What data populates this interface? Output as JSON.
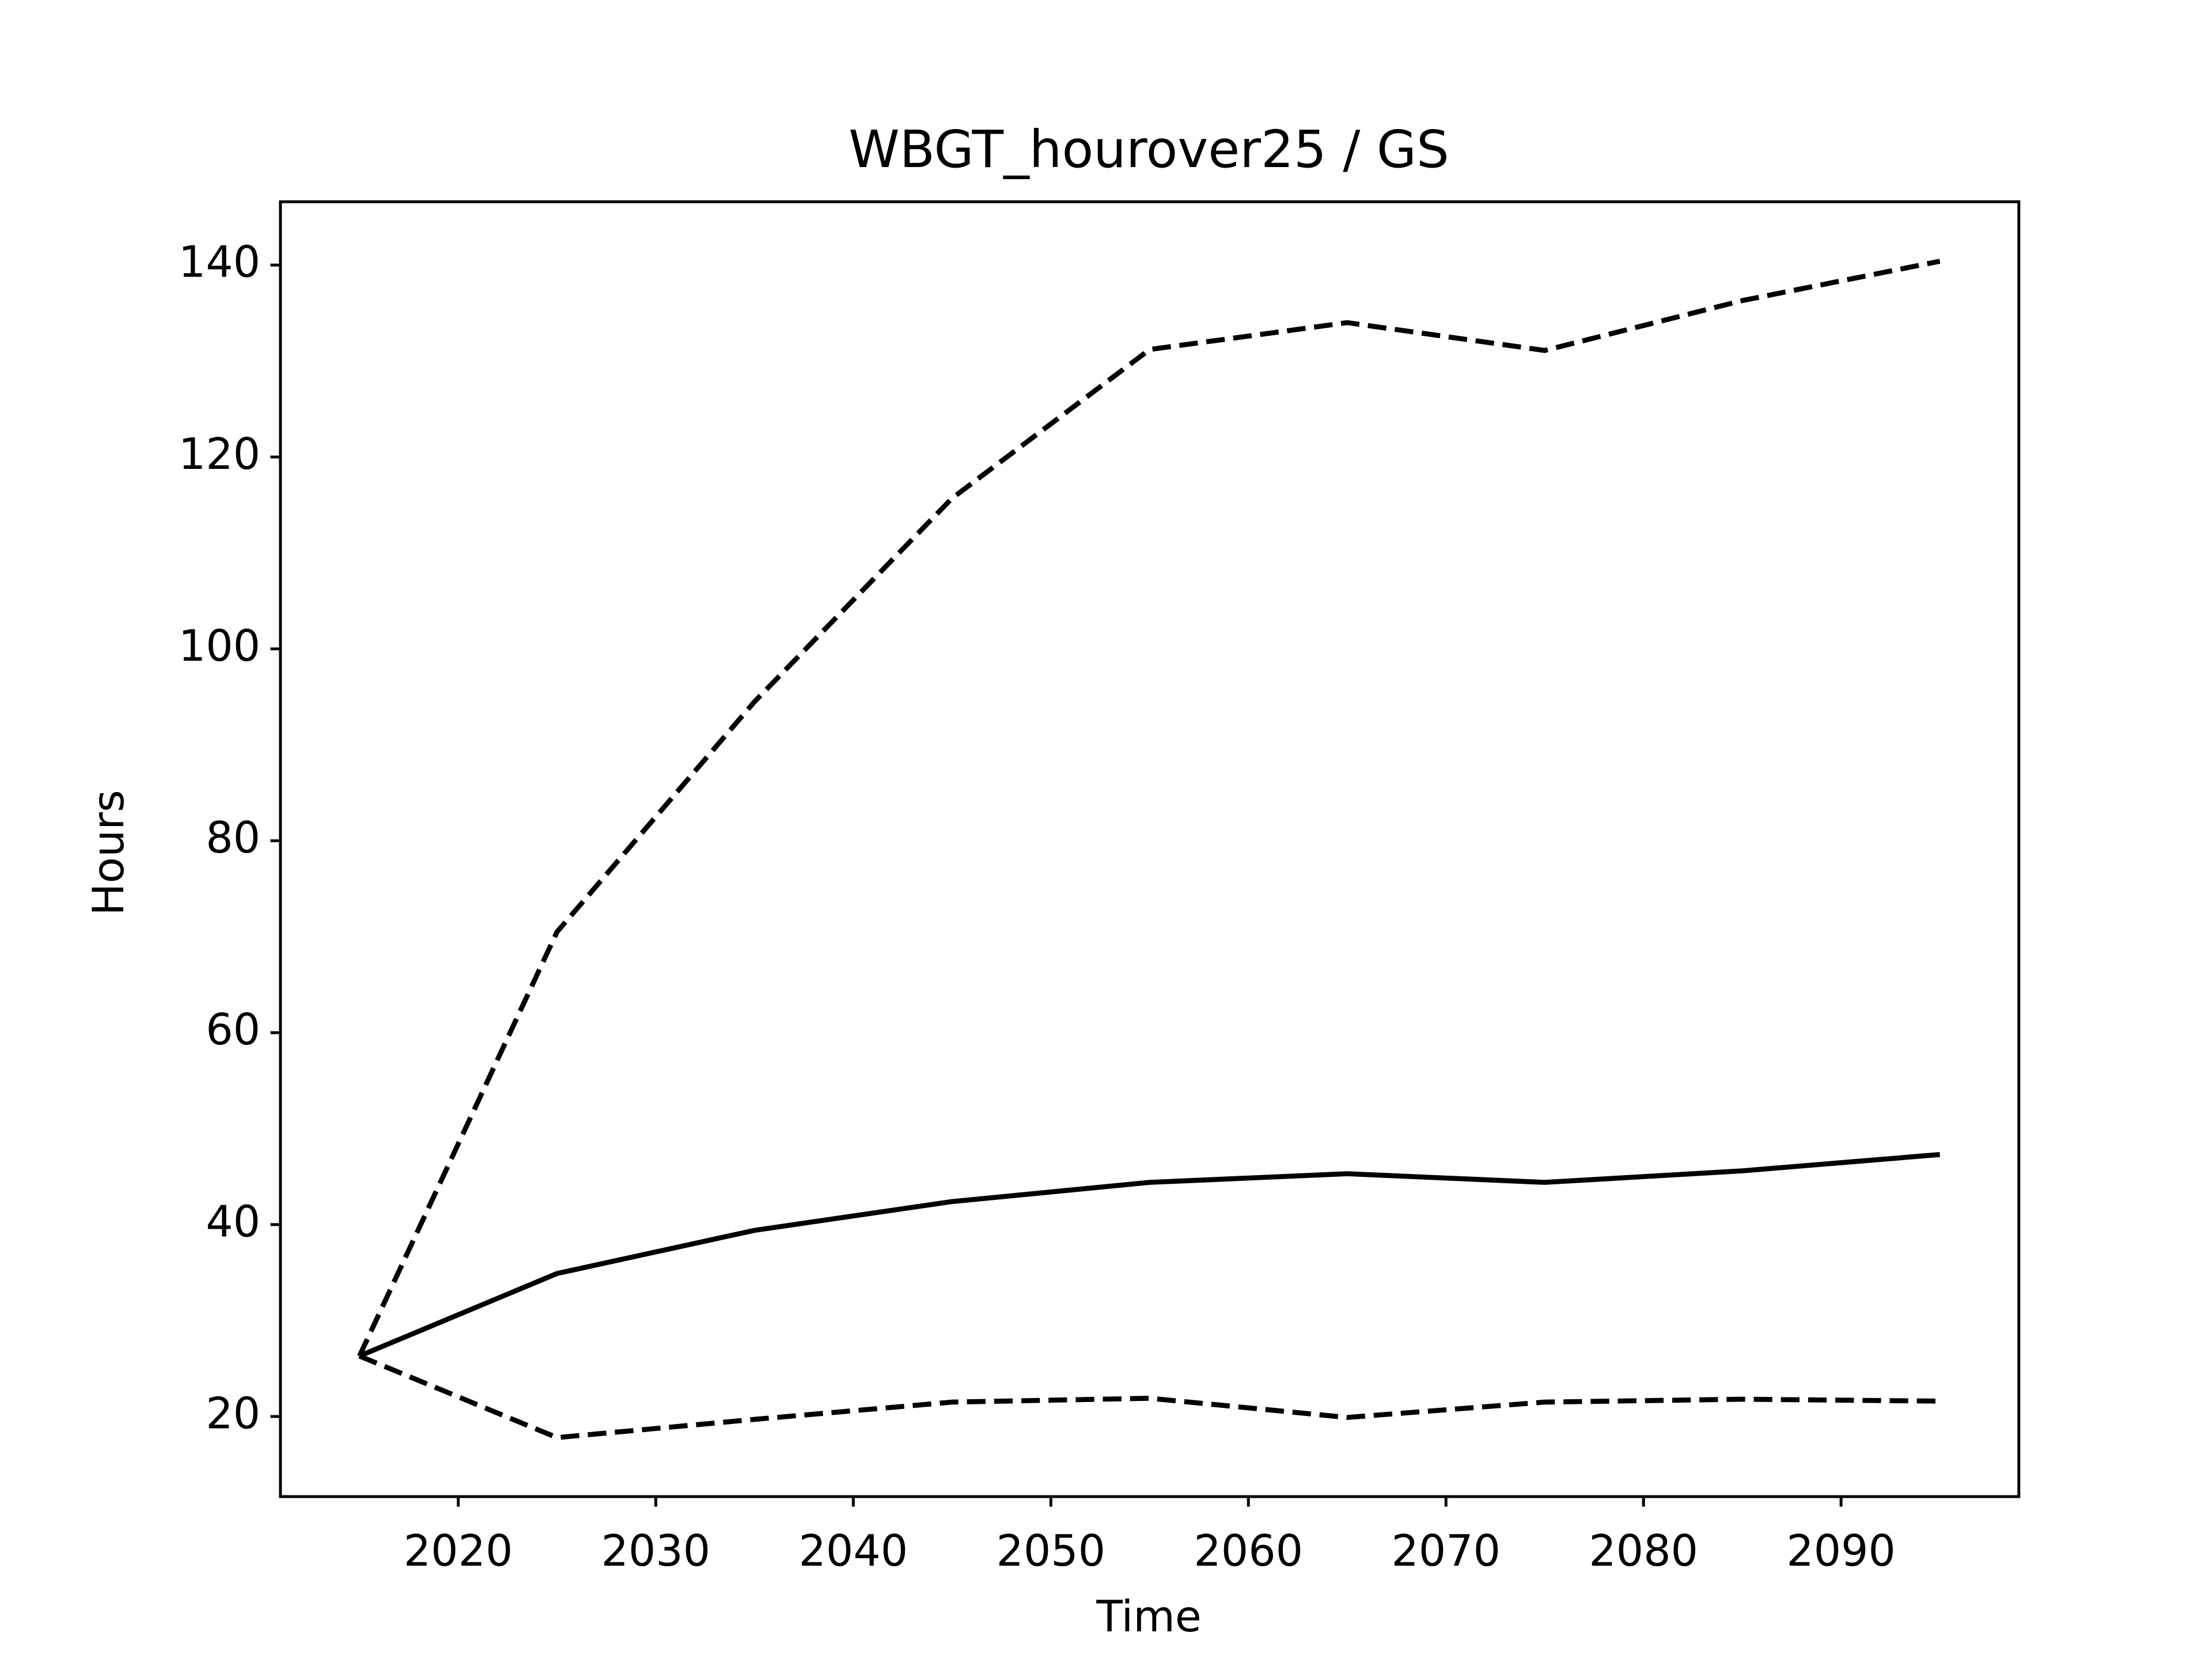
{
  "chart_data": {
    "type": "line",
    "title": "WBGT_hourover25 / GS",
    "xlabel": "Time",
    "ylabel": "Hours",
    "x": [
      2015,
      2025,
      2035,
      2045,
      2055,
      2065,
      2075,
      2085,
      2095
    ],
    "series": [
      {
        "color": "#000000",
        "style": "solid",
        "values": [
          26.3,
          34.9,
          39.4,
          42.4,
          44.4,
          45.3,
          44.4,
          45.6,
          47.3
        ]
      },
      {
        "color": "#000000",
        "style": "dashed",
        "values": [
          26.3,
          70.5,
          94.5,
          115.7,
          131.2,
          134.0,
          131.1,
          136.3,
          140.4
        ]
      },
      {
        "color": "#000000",
        "style": "dashed",
        "values": [
          26.3,
          17.8,
          19.7,
          21.5,
          21.9,
          19.9,
          21.5,
          21.8,
          21.6
        ]
      }
    ],
    "xlim": [
      2011,
      2099
    ],
    "xticks": [
      2020,
      2030,
      2040,
      2050,
      2060,
      2070,
      2080,
      2090
    ],
    "ylim": [
      11.65,
      146.6
    ],
    "yticks": [
      20,
      40,
      60,
      80,
      100,
      120,
      140
    ],
    "grid": false
  }
}
